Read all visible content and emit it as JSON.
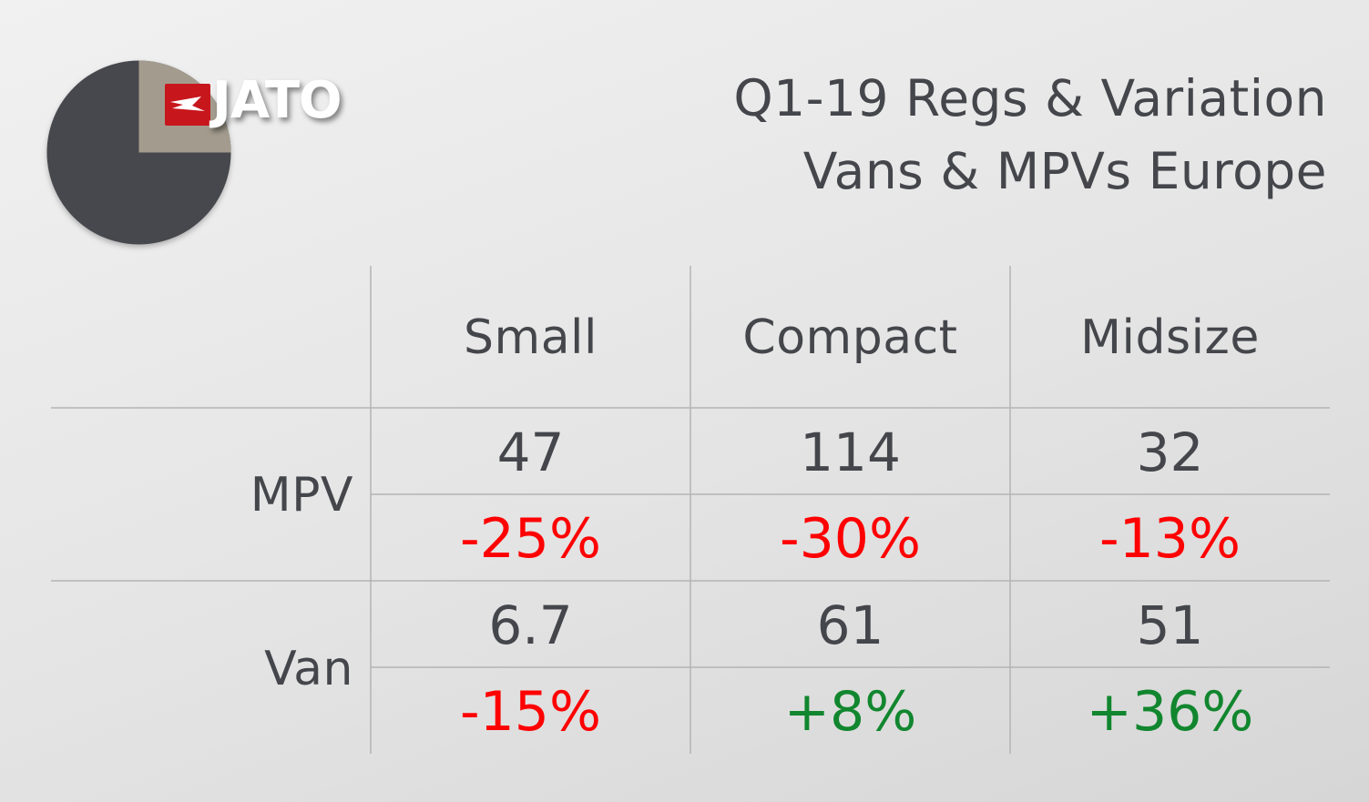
{
  "logo": {
    "text": "JATO",
    "pie_color": "#47484d",
    "wedge_color": "#a39c8e",
    "flag_color": "#c8161d"
  },
  "title": {
    "line1": "Q1-19 Regs & Variation",
    "line2": "Vans & MPVs Europe"
  },
  "chart_data": {
    "type": "table",
    "columns": [
      "Small",
      "Compact",
      "Midsize"
    ],
    "rows": [
      {
        "label": "MPV",
        "values": [
          "47",
          "114",
          "32"
        ],
        "variations": [
          "-25%",
          "-30%",
          "-13%"
        ]
      },
      {
        "label": "Van",
        "values": [
          "6.7",
          "61",
          "51"
        ],
        "variations": [
          "-15%",
          "+8%",
          "+36%"
        ]
      }
    ],
    "colors": {
      "negative": "#ff0000",
      "positive": "#11862e",
      "text": "#44464b",
      "grid": "#b4b4b4"
    }
  }
}
